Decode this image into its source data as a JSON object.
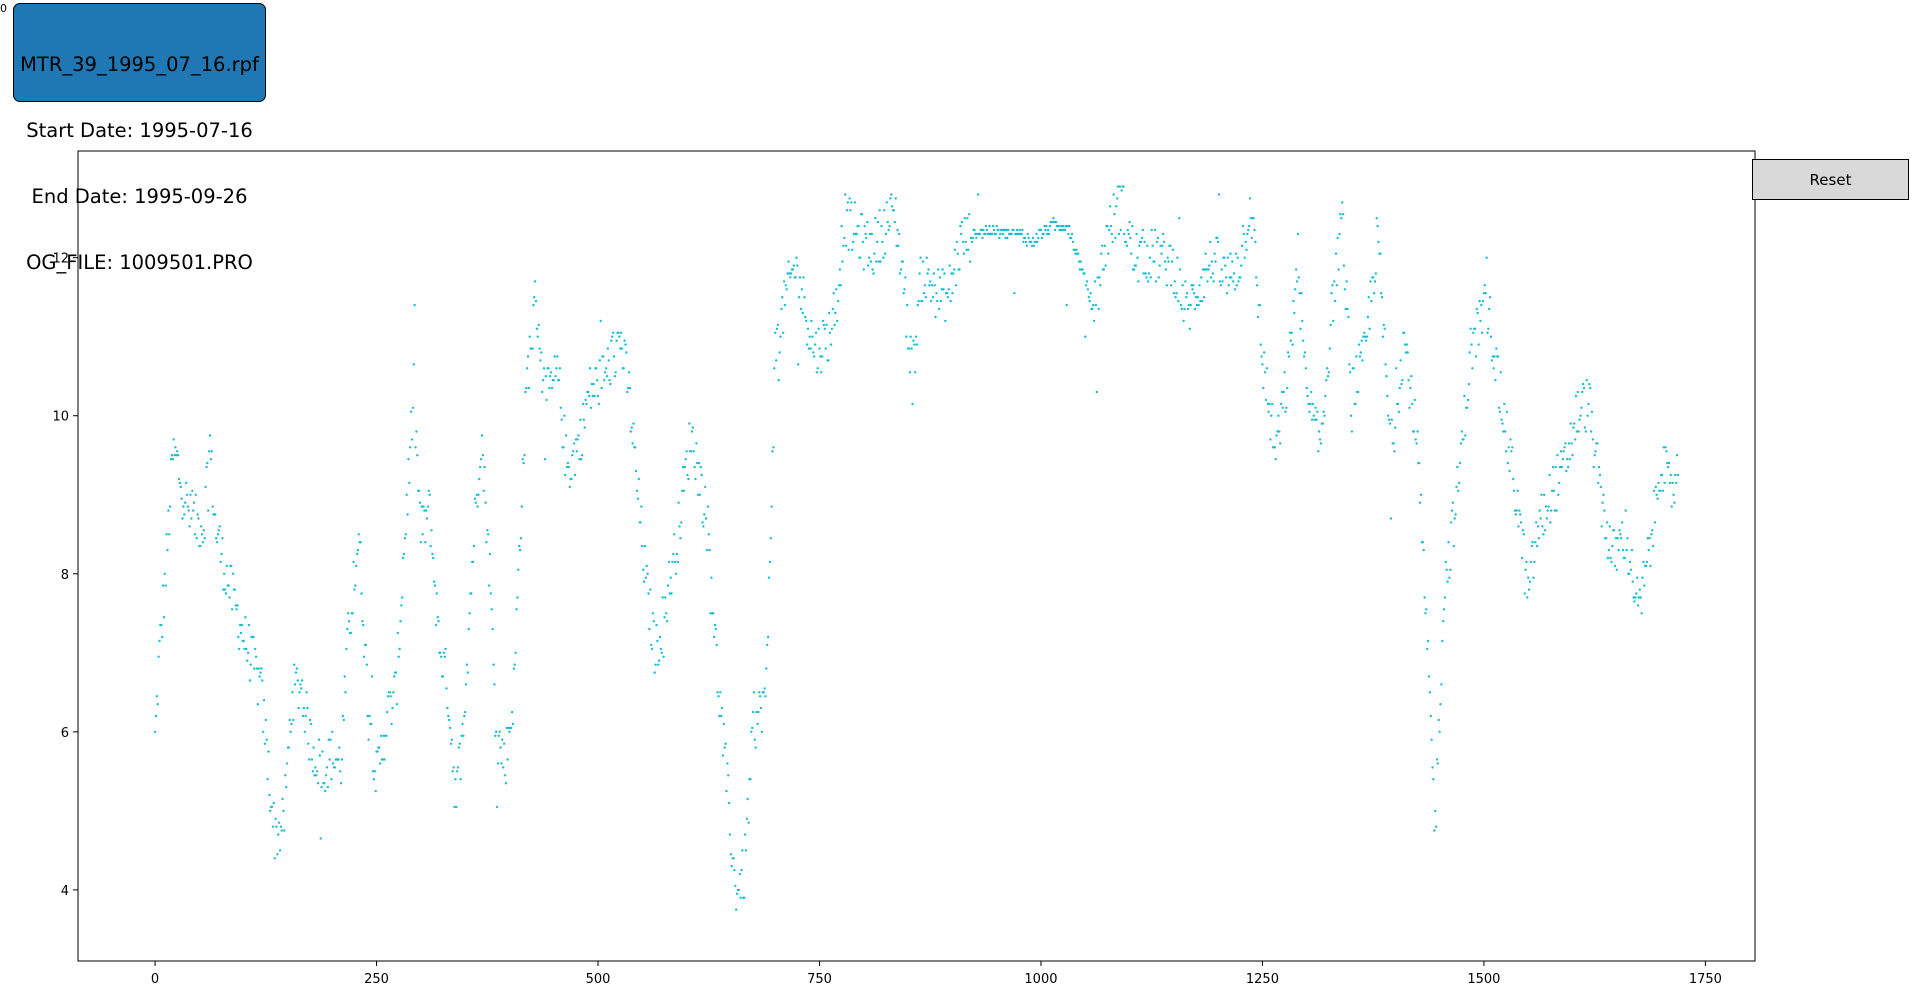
{
  "corner_mark": "0",
  "info_box": {
    "line1": "MTR_39_1995_07_16.rpf",
    "line2": "Start Date: 1995-07-16",
    "line3": "End Date: 1995-09-26",
    "line4": "OG_FILE: 1009501.PRO",
    "color": "#1f77b4"
  },
  "reset_label": "Reset",
  "chart_data": {
    "type": "scatter",
    "title": "",
    "xlabel": "",
    "ylabel": "",
    "xlim": [
      -87,
      1806
    ],
    "ylim": [
      3.1,
      13.35
    ],
    "xticks": [
      0,
      250,
      500,
      750,
      1000,
      1250,
      1500,
      1750
    ],
    "yticks": [
      4,
      6,
      8,
      10,
      12
    ],
    "grid": false,
    "marker_color": "#17becf",
    "series": [
      {
        "n_points": 1720,
        "anchors": [
          [
            0,
            5.9
          ],
          [
            5,
            7.0
          ],
          [
            12,
            8.0
          ],
          [
            20,
            9.5
          ],
          [
            25,
            9.4
          ],
          [
            32,
            9.0
          ],
          [
            40,
            8.7
          ],
          [
            55,
            8.6
          ],
          [
            60,
            9.5
          ],
          [
            62,
            9.6
          ],
          [
            68,
            8.6
          ],
          [
            78,
            8.1
          ],
          [
            90,
            7.6
          ],
          [
            100,
            7.2
          ],
          [
            110,
            6.9
          ],
          [
            120,
            6.5
          ],
          [
            128,
            5.5
          ],
          [
            135,
            4.7
          ],
          [
            145,
            4.8
          ],
          [
            155,
            6.5
          ],
          [
            165,
            6.6
          ],
          [
            175,
            5.9
          ],
          [
            188,
            5.5
          ],
          [
            200,
            5.7
          ],
          [
            210,
            5.6
          ],
          [
            218,
            7.2
          ],
          [
            230,
            8.5
          ],
          [
            240,
            6.5
          ],
          [
            250,
            5.4
          ],
          [
            262,
            6.2
          ],
          [
            272,
            6.5
          ],
          [
            282,
            8.5
          ],
          [
            292,
            10.3
          ],
          [
            300,
            8.5
          ],
          [
            310,
            8.8
          ],
          [
            320,
            7.2
          ],
          [
            330,
            6.6
          ],
          [
            340,
            5.1
          ],
          [
            350,
            6.5
          ],
          [
            360,
            8.5
          ],
          [
            368,
            9.8
          ],
          [
            378,
            8.0
          ],
          [
            385,
            6.0
          ],
          [
            395,
            5.6
          ],
          [
            405,
            6.5
          ],
          [
            412,
            8.5
          ],
          [
            420,
            10.5
          ],
          [
            430,
            11.5
          ],
          [
            440,
            10.2
          ],
          [
            455,
            10.5
          ],
          [
            465,
            9.3
          ],
          [
            480,
            9.7
          ],
          [
            490,
            10.3
          ],
          [
            500,
            10.4
          ],
          [
            512,
            10.6
          ],
          [
            525,
            11.0
          ],
          [
            535,
            10.3
          ],
          [
            545,
            9.0
          ],
          [
            555,
            7.8
          ],
          [
            565,
            7.0
          ],
          [
            575,
            7.5
          ],
          [
            590,
            8.5
          ],
          [
            605,
            9.8
          ],
          [
            615,
            9.2
          ],
          [
            625,
            8.5
          ],
          [
            635,
            6.7
          ],
          [
            645,
            5.4
          ],
          [
            655,
            4.0
          ],
          [
            665,
            4.2
          ],
          [
            675,
            6.0
          ],
          [
            690,
            6.5
          ],
          [
            700,
            10.8
          ],
          [
            712,
            11.5
          ],
          [
            722,
            11.9
          ],
          [
            733,
            11.4
          ],
          [
            745,
            10.8
          ],
          [
            760,
            11.0
          ],
          [
            770,
            11.5
          ],
          [
            778,
            12.5
          ],
          [
            800,
            12.2
          ],
          [
            810,
            12.1
          ],
          [
            825,
            12.4
          ],
          [
            835,
            12.6
          ],
          [
            845,
            11.7
          ],
          [
            855,
            10.5
          ],
          [
            865,
            11.8
          ],
          [
            880,
            11.6
          ],
          [
            895,
            11.5
          ],
          [
            910,
            12.2
          ],
          [
            925,
            12.3
          ],
          [
            940,
            12.35
          ],
          [
            960,
            12.3
          ],
          [
            975,
            12.3
          ],
          [
            990,
            12.2
          ],
          [
            1010,
            12.4
          ],
          [
            1030,
            12.4
          ],
          [
            1045,
            11.9
          ],
          [
            1060,
            11.3
          ],
          [
            1075,
            12.3
          ],
          [
            1090,
            12.7
          ],
          [
            1105,
            12.0
          ],
          [
            1125,
            12.05
          ],
          [
            1150,
            11.9
          ],
          [
            1165,
            11.3
          ],
          [
            1180,
            11.7
          ],
          [
            1195,
            12.0
          ],
          [
            1210,
            11.7
          ],
          [
            1225,
            12.0
          ],
          [
            1237,
            12.7
          ],
          [
            1250,
            10.7
          ],
          [
            1265,
            9.5
          ],
          [
            1280,
            10.6
          ],
          [
            1290,
            12.0
          ],
          [
            1300,
            10.2
          ],
          [
            1315,
            9.6
          ],
          [
            1330,
            11.5
          ],
          [
            1340,
            12.5
          ],
          [
            1350,
            10.3
          ],
          [
            1365,
            10.7
          ],
          [
            1380,
            12.3
          ],
          [
            1395,
            9.5
          ],
          [
            1410,
            11.0
          ],
          [
            1425,
            9.6
          ],
          [
            1435,
            7.3
          ],
          [
            1445,
            4.8
          ],
          [
            1455,
            7.8
          ],
          [
            1470,
            9.0
          ],
          [
            1485,
            10.8
          ],
          [
            1495,
            11.2
          ],
          [
            1505,
            11.4
          ],
          [
            1515,
            10.5
          ],
          [
            1525,
            9.8
          ],
          [
            1540,
            8.7
          ],
          [
            1550,
            7.7
          ],
          [
            1560,
            8.5
          ],
          [
            1575,
            9.0
          ],
          [
            1590,
            9.3
          ],
          [
            1605,
            10.0
          ],
          [
            1618,
            10.2
          ],
          [
            1630,
            9.1
          ],
          [
            1645,
            8.2
          ],
          [
            1660,
            8.5
          ],
          [
            1675,
            7.5
          ],
          [
            1690,
            8.5
          ],
          [
            1700,
            9.5
          ],
          [
            1710,
            9.0
          ],
          [
            1720,
            9.3
          ]
        ]
      }
    ]
  }
}
